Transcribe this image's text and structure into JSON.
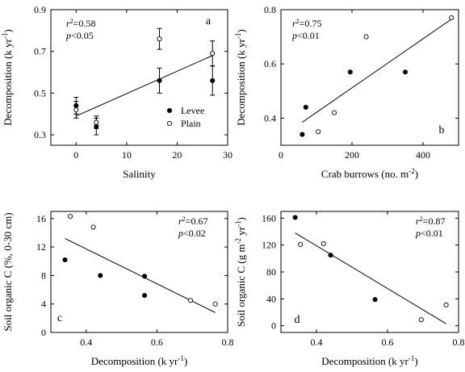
{
  "chart_data": [
    {
      "id": "a",
      "type": "scatter",
      "panel_label": "a",
      "xlabel": "Salinity",
      "ylabel": "Decomposition  (k yr",
      "ylabel_sup": "-1",
      "ylabel_tail": ")",
      "xlim": [
        -5,
        30
      ],
      "ylim": [
        0.25,
        0.9
      ],
      "xticks": [
        "0",
        "10",
        "20",
        "30"
      ],
      "xtick_values": [
        0,
        10,
        20,
        30
      ],
      "yticks": [
        "0.3",
        "0.5",
        "0.7",
        "0.9"
      ],
      "ytick_values": [
        0.3,
        0.5,
        0.7,
        0.9
      ],
      "stats": {
        "r2": "=0.58",
        "p": "<0.05"
      },
      "legend": [
        {
          "name": "Levee",
          "marker": "filled"
        },
        {
          "name": "Plain",
          "marker": "open"
        }
      ],
      "series": [
        {
          "name": "Levee",
          "marker": "filled",
          "points": [
            {
              "x": 0,
              "y": 0.44,
              "err": 0.04
            },
            {
              "x": 4,
              "y": 0.34,
              "err": 0.04
            },
            {
              "x": 16.5,
              "y": 0.56,
              "err": 0.06
            },
            {
              "x": 27,
              "y": 0.56,
              "err": 0.07
            }
          ]
        },
        {
          "name": "Plain",
          "marker": "open",
          "points": [
            {
              "x": 0,
              "y": 0.42,
              "err": 0.04
            },
            {
              "x": 4,
              "y": 0.36,
              "err": 0.03
            },
            {
              "x": 16.5,
              "y": 0.76,
              "err": 0.05
            },
            {
              "x": 27,
              "y": 0.69,
              "err": 0.06
            }
          ]
        }
      ],
      "fit": {
        "x1": 0,
        "y1": 0.39,
        "x2": 27,
        "y2": 0.68
      }
    },
    {
      "id": "b",
      "type": "scatter",
      "panel_label": "b",
      "xlabel": "Crab burrows  (no. m",
      "xlabel_sup": "-2",
      "xlabel_tail": ")",
      "ylabel": "Decomposition  (k yr",
      "ylabel_sup": "-1",
      "ylabel_tail": ")",
      "xlim": [
        0,
        500
      ],
      "ylim": [
        0.3,
        0.8
      ],
      "xticks": [
        "0",
        "200",
        "400"
      ],
      "xtick_values": [
        0,
        200,
        400
      ],
      "yticks": [
        "0.4",
        "0.6",
        "0.8"
      ],
      "ytick_values": [
        0.4,
        0.6,
        0.8
      ],
      "stats": {
        "r2": "=0.75",
        "p": "<0.01"
      },
      "series": [
        {
          "marker": "filled",
          "points": [
            {
              "x": 60,
              "y": 0.34
            },
            {
              "x": 70,
              "y": 0.44
            },
            {
              "x": 195,
              "y": 0.57
            },
            {
              "x": 350,
              "y": 0.57
            }
          ]
        },
        {
          "marker": "open",
          "points": [
            {
              "x": 105,
              "y": 0.35
            },
            {
              "x": 150,
              "y": 0.42
            },
            {
              "x": 240,
              "y": 0.7
            },
            {
              "x": 480,
              "y": 0.77
            }
          ]
        }
      ],
      "fit": {
        "x1": 60,
        "y1": 0.385,
        "x2": 480,
        "y2": 0.765
      }
    },
    {
      "id": "c",
      "type": "scatter",
      "panel_label": "c",
      "xlabel": "Decomposition  (k yr",
      "xlabel_sup": "-1",
      "xlabel_tail": ")",
      "ylabel": "Soil organic C  (%, 0-30 cm)",
      "xlim": [
        0.3,
        0.8
      ],
      "ylim": [
        0,
        17
      ],
      "xticks": [
        "0.4",
        "0.6",
        "0.8"
      ],
      "xtick_values": [
        0.4,
        0.6,
        0.8
      ],
      "yticks": [
        "0",
        "4",
        "8",
        "12",
        "16"
      ],
      "ytick_values": [
        0,
        4,
        8,
        12,
        16
      ],
      "stats": {
        "r2": "=0.67",
        "p": "<0.02"
      },
      "series": [
        {
          "marker": "filled",
          "points": [
            {
              "x": 0.34,
              "y": 10.2
            },
            {
              "x": 0.44,
              "y": 8.0
            },
            {
              "x": 0.565,
              "y": 7.9
            },
            {
              "x": 0.565,
              "y": 5.2
            }
          ]
        },
        {
          "marker": "open",
          "points": [
            {
              "x": 0.355,
              "y": 16.3
            },
            {
              "x": 0.42,
              "y": 14.8
            },
            {
              "x": 0.695,
              "y": 4.5
            },
            {
              "x": 0.765,
              "y": 4.0
            }
          ]
        }
      ],
      "fit": {
        "x1": 0.34,
        "y1": 13.2,
        "x2": 0.765,
        "y2": 2.8
      }
    },
    {
      "id": "d",
      "type": "scatter",
      "panel_label": "d",
      "xlabel": "Decomposition  (k yr",
      "xlabel_sup": "-1",
      "xlabel_tail": ")",
      "ylabel": "Soil organic C  (g m",
      "ylabel_sup": "-2",
      "ylabel_mid": " yr",
      "ylabel_sup2": "-1",
      "ylabel_tail": ")",
      "xlim": [
        0.3,
        0.8
      ],
      "ylim": [
        -10,
        170
      ],
      "xticks": [
        "0.4",
        "0.6",
        "0.8"
      ],
      "xtick_values": [
        0.4,
        0.6,
        0.8
      ],
      "yticks": [
        "0",
        "40",
        "80",
        "120",
        "160"
      ],
      "ytick_values": [
        0,
        40,
        80,
        120,
        160
      ],
      "stats": {
        "r2": "=0.87",
        "p": "<0.01"
      },
      "series": [
        {
          "marker": "filled",
          "points": [
            {
              "x": 0.34,
              "y": 161
            },
            {
              "x": 0.44,
              "y": 105
            },
            {
              "x": 0.565,
              "y": 39
            }
          ]
        },
        {
          "marker": "open",
          "points": [
            {
              "x": 0.355,
              "y": 121
            },
            {
              "x": 0.42,
              "y": 122
            },
            {
              "x": 0.695,
              "y": 9
            },
            {
              "x": 0.765,
              "y": 31
            }
          ]
        }
      ],
      "fit": {
        "x1": 0.34,
        "y1": 138,
        "x2": 0.765,
        "y2": 3
      }
    }
  ]
}
